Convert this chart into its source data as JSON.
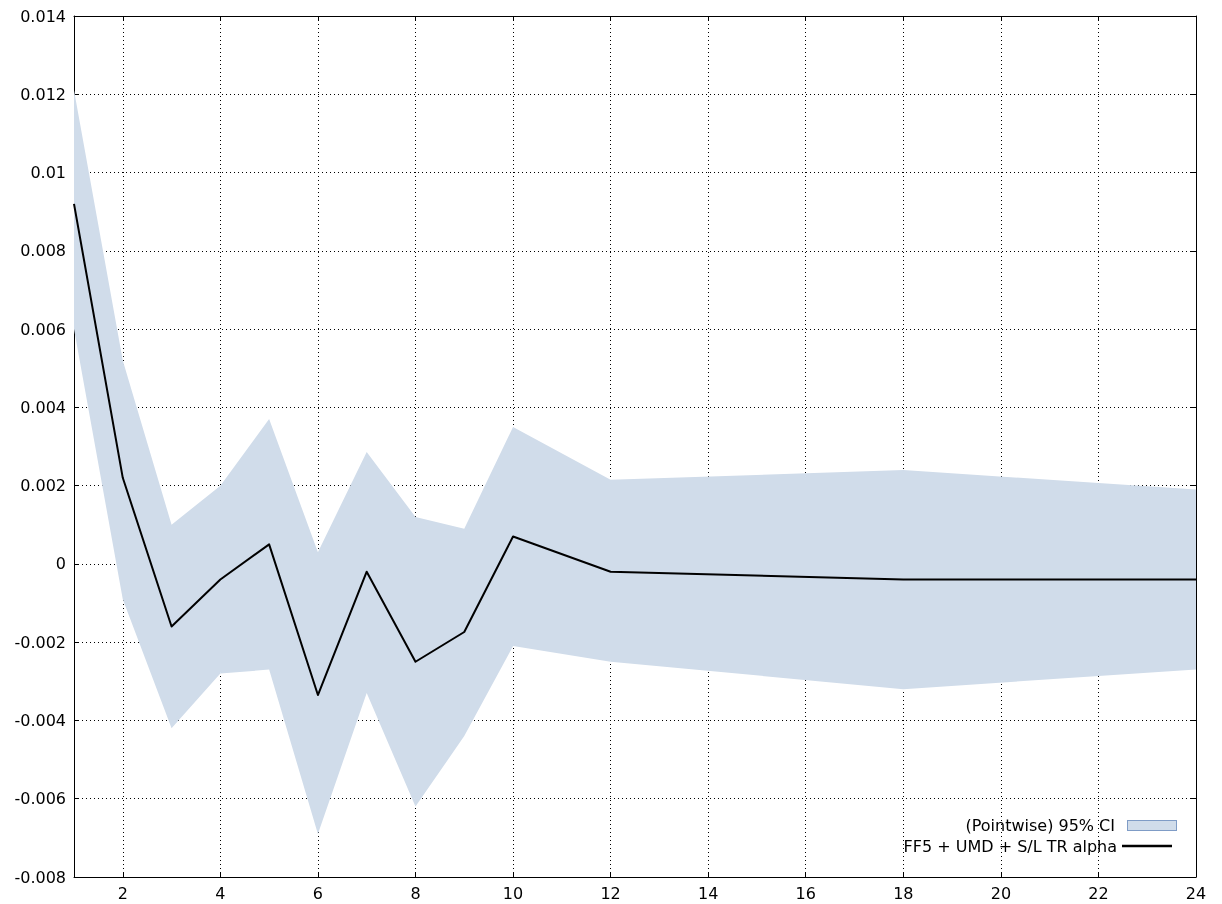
{
  "chart_data": {
    "type": "line",
    "xlim": [
      1,
      24
    ],
    "xticks": [
      2,
      4,
      6,
      8,
      10,
      12,
      14,
      16,
      18,
      20,
      22,
      24
    ],
    "ylim": [
      -0.008,
      0.014
    ],
    "yticks": [
      -0.008,
      -0.006,
      -0.004,
      -0.002,
      0,
      0.002,
      0.004,
      0.006,
      0.008,
      0.01,
      0.012,
      0.014
    ],
    "grid": true,
    "legend": "bottom right",
    "marker": "none",
    "line_style": "solid",
    "annotations": [
      "(Pointwise) 95% CI"
    ],
    "series": [
      {
        "name": "FF5 + UMD + S/L TR alpha",
        "color": "#000000",
        "x": [
          1,
          2,
          3,
          4,
          5,
          6,
          7,
          8,
          9,
          10,
          12,
          18,
          24
        ],
        "values": [
          0.0092,
          0.0022,
          -0.0016,
          -0.0004,
          0.0005,
          -0.00335,
          -0.0002,
          -0.0025,
          -0.00174,
          0.0007,
          -0.0002,
          -0.0004,
          -0.0004
        ],
        "lower": [
          0.006,
          -0.0009,
          -0.0042,
          -0.0028,
          -0.0027,
          -0.0069,
          -0.0033,
          -0.0062,
          -0.0044,
          -0.0021,
          -0.0025,
          -0.0032,
          -0.0027
        ],
        "upper": [
          0.0121,
          0.0052,
          0.001,
          0.002,
          0.0037,
          0.0003,
          0.00286,
          0.0012,
          0.0009,
          0.0035,
          0.00215,
          0.0024,
          0.0019
        ]
      }
    ]
  }
}
